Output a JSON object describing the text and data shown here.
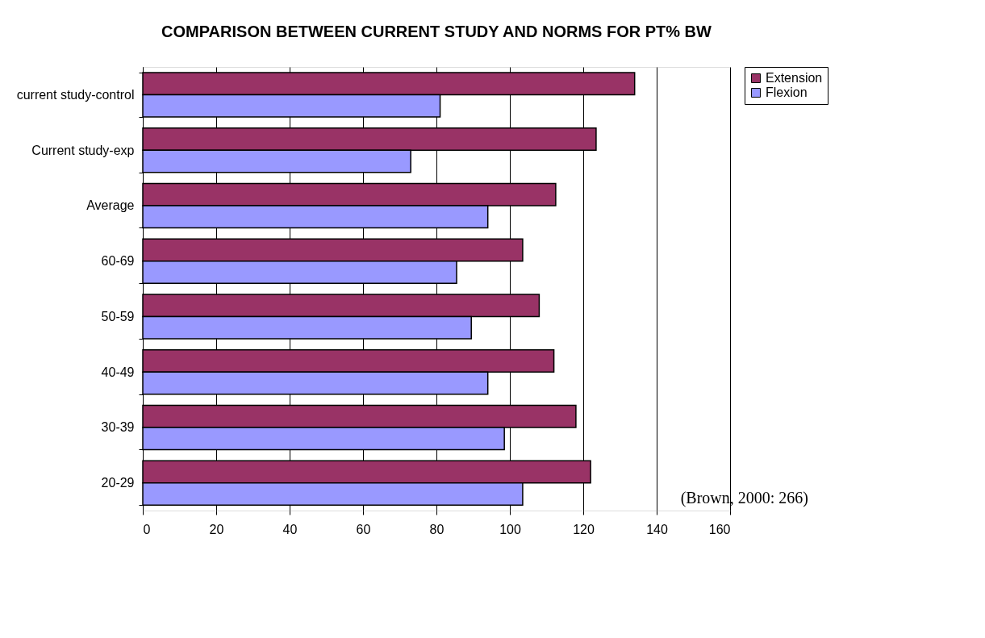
{
  "chart_data": {
    "type": "bar",
    "orientation": "horizontal",
    "title": "COMPARISON BETWEEN CURRENT STUDY AND NORMS FOR PT% BW",
    "categories": [
      "current study-control",
      "Current study-exp",
      "Average",
      "60-69",
      "50-59",
      "40-49",
      "30-39",
      "20-29"
    ],
    "series": [
      {
        "name": "Extension",
        "color": "#993366",
        "values": [
          134,
          123.5,
          112.5,
          103.5,
          108,
          112,
          118,
          122
        ]
      },
      {
        "name": "Flexion",
        "color": "#9999ff",
        "values": [
          81,
          73,
          94,
          85.5,
          89.5,
          94,
          98.5,
          103.5
        ]
      }
    ],
    "xlim": [
      0,
      160
    ],
    "xticks": [
      0,
      20,
      40,
      60,
      80,
      100,
      120,
      140,
      160
    ],
    "grid": "x",
    "legend": "right",
    "annotations": [
      "(Brown, 2000: 266)"
    ]
  }
}
